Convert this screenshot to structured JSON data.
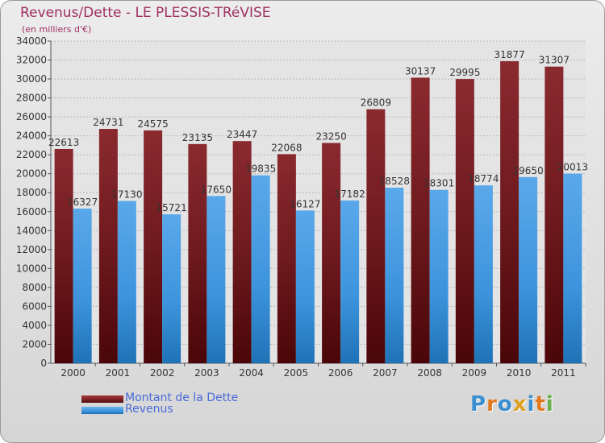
{
  "title": "Revenus/Dette - LE PLESSIS-TRéVISE",
  "subtitle": "(en milliers d'€)",
  "logo": {
    "letters": [
      "P",
      "r",
      "o",
      "x",
      "i",
      "t",
      "i"
    ],
    "colors": [
      "#3b8fd0",
      "#e07820",
      "#3b8fd0",
      "#e0a020",
      "#3b8fd0",
      "#e07820",
      "#6ab04c"
    ]
  },
  "legend": [
    {
      "label": "Montant de la Dette",
      "color": "#7a1f24"
    },
    {
      "label": "Revenus",
      "color": "#3d94dc"
    }
  ],
  "chart_data": {
    "type": "bar",
    "categories": [
      "2000",
      "2001",
      "2002",
      "2003",
      "2004",
      "2005",
      "2006",
      "2007",
      "2008",
      "2009",
      "2010",
      "2011"
    ],
    "series": [
      {
        "name": "Montant de la Dette",
        "values": [
          22613,
          24731,
          24575,
          23135,
          23447,
          22068,
          23250,
          26809,
          30137,
          29995,
          31877,
          31307
        ]
      },
      {
        "name": "Revenus",
        "values": [
          16327,
          17130,
          15721,
          17650,
          19835,
          16127,
          17182,
          18528,
          18301,
          18774,
          19650,
          20013
        ]
      }
    ],
    "ylim": [
      0,
      34000
    ],
    "yticks": [
      0,
      2000,
      4000,
      6000,
      8000,
      10000,
      12000,
      14000,
      16000,
      18000,
      20000,
      22000,
      24000,
      26000,
      28000,
      30000,
      32000,
      34000
    ],
    "grid": true,
    "legend_position": "bottom-left"
  }
}
